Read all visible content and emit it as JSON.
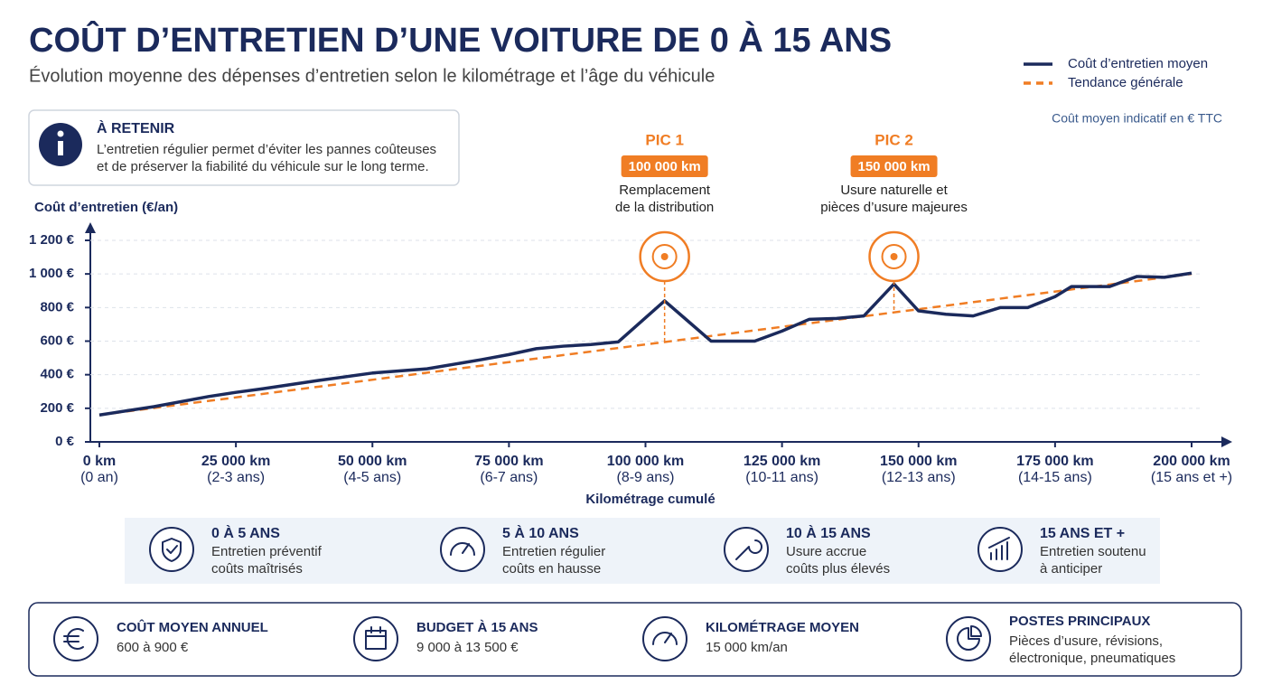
{
  "title": "COÛT D’ENTRETIEN D’UNE VOITURE DE 0 À 15 ANS",
  "subtitle": "Évolution moyenne des dépenses d’entretien selon le kilométrage et l’âge du véhicule",
  "note": "Coût moyen indicatif en € TTC",
  "info_box": {
    "title": "À RETENIR",
    "lines": [
      "L’entretien régulier permet d’éviter les pannes coûteuses",
      "et de préserver la fiabilité du véhicule sur le long terme."
    ]
  },
  "chart_data": {
    "type": "line",
    "y_label": "Coût d’entretien (€/an)",
    "x_label": "Kilométrage cumulé",
    "xlim": [
      0,
      200000
    ],
    "ylim": [
      0,
      1300
    ],
    "grid": true,
    "xticks": [
      {
        "value": 0,
        "label": "0 km"
      },
      {
        "value": 25000,
        "label": "25 000 km"
      },
      {
        "value": 50000,
        "label": "50 000 km"
      },
      {
        "value": 75000,
        "label": "75 000 km"
      },
      {
        "value": 100000,
        "label": "100 000 km"
      },
      {
        "value": 125000,
        "label": "125 000 km"
      },
      {
        "value": 150000,
        "label": "150 000 km"
      },
      {
        "value": 175000,
        "label": "175 000 km"
      },
      {
        "value": 200000,
        "label": "200 000 km"
      }
    ],
    "xtick_sublabels": [
      "(0 an)",
      "(2-3 ans)",
      "(4-5 ans)",
      "(6-7 ans)",
      "(8-9 ans)",
      "(10-11 ans)",
      "(12-13 ans)",
      "(14-15 ans)",
      "(15 ans et +)"
    ],
    "yticks": [
      {
        "value": 0,
        "label": "0 €"
      },
      {
        "value": 200,
        "label": "200 €"
      },
      {
        "value": 400,
        "label": "400 €"
      },
      {
        "value": 600,
        "label": "600 €"
      },
      {
        "value": 800,
        "label": "800 €"
      },
      {
        "value": 1000,
        "label": "1 000 €"
      },
      {
        "value": 1200,
        "label": "1 200 €"
      }
    ],
    "series": [
      {
        "name": "Coût d’entretien moyen",
        "color": "#1b2a5c",
        "dashed": false,
        "x": [
          0,
          10000,
          20000,
          25000,
          30000,
          40000,
          50000,
          60000,
          70000,
          75000,
          80000,
          85000,
          90000,
          95000,
          103500,
          112000,
          120000,
          125000,
          130000,
          135000,
          140000,
          145500,
          150000,
          155000,
          160000,
          165000,
          170000,
          175000,
          178000,
          185000,
          190000,
          195000,
          200000
        ],
        "values": [
          160,
          210,
          270,
          295,
          317,
          365,
          410,
          435,
          490,
          520,
          555,
          570,
          580,
          595,
          840,
          600,
          600,
          660,
          730,
          735,
          750,
          940,
          780,
          760,
          750,
          800,
          800,
          865,
          925,
          925,
          985,
          980,
          1005
        ]
      },
      {
        "name": "Tendance générale",
        "color": "#f07d24",
        "dashed": true,
        "x": [
          0,
          200000
        ],
        "values": [
          160,
          1000
        ]
      }
    ],
    "annotations": [
      {
        "title": "PIC 1",
        "badge": "100 000 km",
        "x": 100000,
        "lines": [
          "Remplacement",
          "de la distribution"
        ]
      },
      {
        "title": "PIC 2",
        "badge": "150 000 km",
        "x": 150000,
        "lines": [
          "Usure naturelle et",
          "pièces d’usure majeures"
        ]
      }
    ]
  },
  "age_bands": [
    {
      "title": "0 À 5 ANS",
      "lines": [
        "Entretien préventif",
        "coûts maîtrisés"
      ]
    },
    {
      "title": "5 À 10 ANS",
      "lines": [
        "Entretien régulier",
        "coûts en hausse"
      ]
    },
    {
      "title": "10 À 15 ANS",
      "lines": [
        "Usure accrue",
        "coûts plus élevés"
      ]
    },
    {
      "title": "15 ANS ET +",
      "lines": [
        "Entretien soutenu",
        "à anticiper"
      ]
    }
  ],
  "stats": [
    {
      "title": "COÛT MOYEN ANNUEL",
      "lines": [
        "600 à 900 €"
      ]
    },
    {
      "title": "BUDGET À 15 ANS",
      "lines": [
        "9 000 à 13 500 €"
      ]
    },
    {
      "title": "KILOMÉTRAGE MOYEN",
      "lines": [
        "15 000 km/an"
      ]
    },
    {
      "title": "POSTES PRINCIPAUX",
      "lines": [
        "Pièces d’usure, révisions,",
        "électronique, pneumatiques"
      ]
    }
  ]
}
